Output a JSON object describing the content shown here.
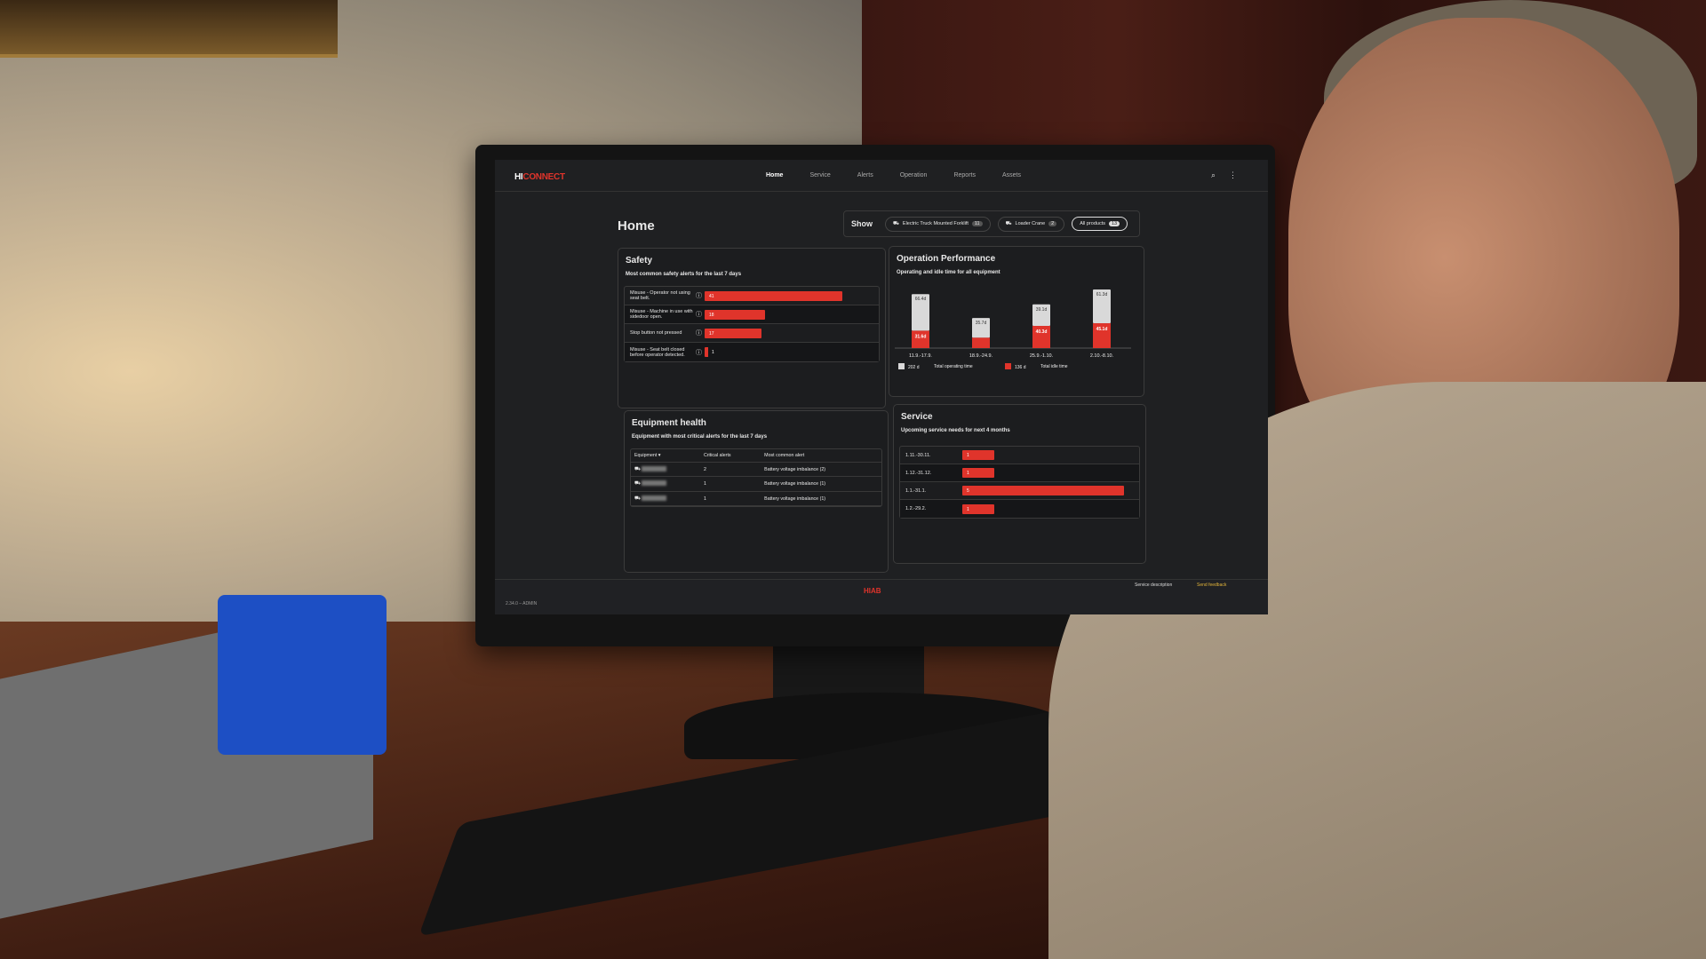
{
  "app": {
    "logo_hi": "HI",
    "logo_connect": "CONNECT",
    "footer_logo": "HIAB",
    "version": "2.34.0 – ADMIN",
    "footer_links": [
      "Service description",
      "Send feedback"
    ]
  },
  "nav": {
    "items": [
      "Home",
      "Service",
      "Alerts",
      "Operation",
      "Reports",
      "Assets"
    ],
    "active": "Home"
  },
  "page": {
    "title": "Home"
  },
  "filter": {
    "label": "Show",
    "chips": [
      {
        "label": "Electric Truck Mounted Forklift",
        "count": "11"
      },
      {
        "label": "Loader Crane",
        "count": "2"
      },
      {
        "label": "All products",
        "count": "13",
        "selected": true
      }
    ]
  },
  "safety": {
    "title": "Safety",
    "subtitle": "Most common safety alerts for the last 7 days",
    "items": [
      {
        "label": "Misuse - Operator not using seat belt.",
        "value": 41
      },
      {
        "label": "Misuse - Machine in use with sidedoor open.",
        "value": 18
      },
      {
        "label": "Stop button not pressed",
        "value": 17
      },
      {
        "label": "Misuse - Seat belt closed before operator detected.",
        "value": 1
      }
    ]
  },
  "operation": {
    "title": "Operation Performance",
    "subtitle": "Operating and idle time for all equipment"
  },
  "chart_data": {
    "type": "bar",
    "stacked": true,
    "categories": [
      "11.9.-17.9.",
      "18.9.-24.9.",
      "25.9.-1.10.",
      "2.10.-8.10."
    ],
    "series": [
      {
        "name": "Total operating time",
        "color": "#d9d9d9",
        "values": [
          66.4,
          35.7,
          39.1,
          61.3
        ],
        "labels": [
          "66.4d",
          "35.7d",
          "39.1d",
          "61.3d"
        ]
      },
      {
        "name": "Total idle time",
        "color": "#e0342b",
        "values": [
          31.6,
          19,
          40.3,
          45.1
        ],
        "labels": [
          "31.6d",
          "",
          "40.3d",
          "45.1d"
        ]
      }
    ],
    "legend": [
      {
        "value": "202 d",
        "label": "Total operating time"
      },
      {
        "value": "136 d",
        "label": "Total idle time"
      }
    ],
    "legend_placement": "bottom"
  },
  "equipment": {
    "title": "Equipment health",
    "subtitle": "Equipment with most critical alerts for the last 7 days",
    "columns": [
      "Equipment",
      "Critical alerts",
      "Most common alert"
    ],
    "rows": [
      {
        "alerts": "2",
        "alert": "Battery voltage imbalance (2)"
      },
      {
        "alerts": "1",
        "alert": "Battery voltage imbalance (1)"
      },
      {
        "alerts": "1",
        "alert": "Battery voltage imbalance (1)"
      }
    ]
  },
  "service": {
    "title": "Service",
    "subtitle": "Upcoming service needs for next 4 months",
    "items": [
      {
        "label": "1.11.-30.11.",
        "value": 1
      },
      {
        "label": "1.12.-31.12.",
        "value": 1
      },
      {
        "label": "1.1.-31.1.",
        "value": 5
      },
      {
        "label": "1.2.-29.2.",
        "value": 1
      }
    ]
  },
  "colors": {
    "accent": "#e0342b",
    "background": "#1f2022"
  }
}
